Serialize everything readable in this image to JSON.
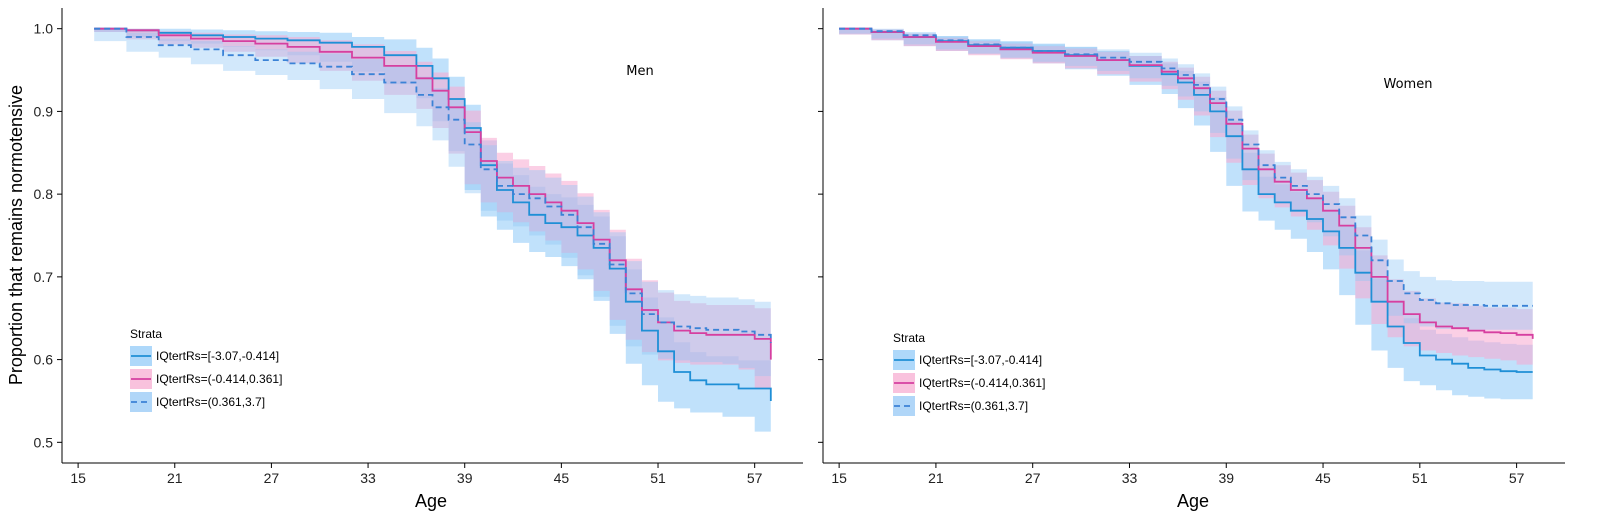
{
  "y_axis_label": "Proportion that remains normotensive",
  "legend": {
    "title": "Strata",
    "entries": [
      "IQtertRs=[-3.07,-0.414]",
      "IQtertRs=(-0.414,0.361]",
      "IQtertRs=(0.361,3.7]"
    ]
  },
  "colors": {
    "series_low": "#1f8fd6",
    "series_mid": "#d63fa0",
    "series_high": "#3b82d6",
    "band_low": "#8cc8f8",
    "band_mid": "#f7a8cf",
    "band_high": "#8fc5f5"
  },
  "chart_data": [
    {
      "type": "line",
      "panel_label": "Men",
      "xlabel": "Age",
      "ylabel": "Proportion that remains normotensive",
      "xlim": [
        14,
        60
      ],
      "ylim": [
        0.475,
        1.025
      ],
      "xticks": [
        15,
        21,
        27,
        33,
        39,
        45,
        51,
        57
      ],
      "yticks": [
        0.5,
        0.6,
        0.7,
        0.8,
        0.9,
        1.0
      ],
      "grid": false,
      "legend_position": "bottom-left",
      "series": [
        {
          "name": "IQtertRs=[-3.07,-0.414]",
          "style": "solid",
          "x": [
            16,
            18,
            20,
            22,
            24,
            26,
            28,
            30,
            32,
            34,
            36,
            37,
            38,
            39,
            40,
            41,
            42,
            43,
            44,
            45,
            46,
            47,
            48,
            49,
            50,
            51,
            52,
            53,
            54,
            55,
            56,
            57,
            58
          ],
          "y": [
            1.0,
            0.998,
            0.995,
            0.992,
            0.99,
            0.988,
            0.986,
            0.983,
            0.978,
            0.968,
            0.955,
            0.94,
            0.915,
            0.88,
            0.835,
            0.805,
            0.79,
            0.775,
            0.765,
            0.76,
            0.75,
            0.735,
            0.71,
            0.67,
            0.635,
            0.61,
            0.585,
            0.575,
            0.57,
            0.57,
            0.565,
            0.565,
            0.55
          ],
          "lower": [
            1.0,
            0.996,
            0.99,
            0.985,
            0.982,
            0.978,
            0.974,
            0.968,
            0.96,
            0.948,
            0.933,
            0.916,
            0.888,
            0.852,
            0.805,
            0.773,
            0.757,
            0.741,
            0.73,
            0.724,
            0.713,
            0.697,
            0.671,
            0.631,
            0.595,
            0.569,
            0.549,
            0.541,
            0.536,
            0.536,
            0.531,
            0.531,
            0.513
          ],
          "upper": [
            1.0,
            1.0,
            1.0,
            0.999,
            0.998,
            0.997,
            0.996,
            0.995,
            0.99,
            0.987,
            0.977,
            0.964,
            0.942,
            0.908,
            0.865,
            0.837,
            0.823,
            0.809,
            0.8,
            0.796,
            0.787,
            0.773,
            0.749,
            0.709,
            0.675,
            0.651,
            0.621,
            0.609,
            0.604,
            0.604,
            0.599,
            0.599,
            0.587
          ]
        },
        {
          "name": "IQtertRs=(-0.414,0.361]",
          "style": "solid",
          "x": [
            16,
            18,
            20,
            22,
            24,
            26,
            28,
            30,
            32,
            34,
            36,
            37,
            38,
            39,
            40,
            41,
            42,
            43,
            44,
            45,
            46,
            47,
            48,
            49,
            50,
            51,
            52,
            53,
            54,
            55,
            56,
            57,
            58
          ],
          "y": [
            1.0,
            0.998,
            0.992,
            0.988,
            0.985,
            0.982,
            0.978,
            0.972,
            0.965,
            0.955,
            0.94,
            0.925,
            0.905,
            0.875,
            0.84,
            0.82,
            0.81,
            0.8,
            0.79,
            0.78,
            0.765,
            0.745,
            0.72,
            0.685,
            0.66,
            0.645,
            0.635,
            0.632,
            0.63,
            0.63,
            0.63,
            0.625,
            0.6
          ],
          "lower": [
            1.0,
            0.996,
            0.987,
            0.981,
            0.977,
            0.972,
            0.966,
            0.958,
            0.949,
            0.937,
            0.92,
            0.903,
            0.88,
            0.849,
            0.812,
            0.79,
            0.778,
            0.766,
            0.755,
            0.744,
            0.729,
            0.709,
            0.683,
            0.648,
            0.624,
            0.609,
            0.599,
            0.596,
            0.594,
            0.594,
            0.594,
            0.588,
            0.565
          ],
          "upper": [
            1.0,
            1.0,
            0.997,
            0.995,
            0.993,
            0.992,
            0.99,
            0.986,
            0.981,
            0.973,
            0.96,
            0.947,
            0.93,
            0.901,
            0.868,
            0.85,
            0.842,
            0.834,
            0.825,
            0.816,
            0.801,
            0.781,
            0.757,
            0.722,
            0.696,
            0.681,
            0.671,
            0.668,
            0.666,
            0.666,
            0.666,
            0.662,
            0.635
          ]
        },
        {
          "name": "IQtertRs=(0.361,3.7]",
          "style": "dashed",
          "x": [
            16,
            18,
            20,
            22,
            24,
            26,
            28,
            30,
            32,
            34,
            36,
            37,
            38,
            39,
            40,
            41,
            42,
            43,
            44,
            45,
            46,
            47,
            48,
            49,
            50,
            51,
            52,
            53,
            54,
            55,
            56,
            57,
            58
          ],
          "y": [
            1.0,
            0.99,
            0.98,
            0.975,
            0.968,
            0.962,
            0.958,
            0.954,
            0.945,
            0.935,
            0.92,
            0.905,
            0.89,
            0.86,
            0.83,
            0.81,
            0.8,
            0.795,
            0.785,
            0.775,
            0.76,
            0.74,
            0.715,
            0.68,
            0.655,
            0.645,
            0.64,
            0.638,
            0.636,
            0.636,
            0.634,
            0.63,
            0.62
          ],
          "lower": [
            1.0,
            0.985,
            0.972,
            0.965,
            0.957,
            0.949,
            0.944,
            0.938,
            0.927,
            0.915,
            0.898,
            0.882,
            0.865,
            0.833,
            0.801,
            0.78,
            0.768,
            0.761,
            0.75,
            0.739,
            0.723,
            0.702,
            0.676,
            0.641,
            0.616,
            0.606,
            0.601,
            0.599,
            0.597,
            0.597,
            0.595,
            0.59,
            0.58
          ],
          "upper": [
            1.0,
            0.995,
            0.988,
            0.985,
            0.979,
            0.975,
            0.972,
            0.97,
            0.963,
            0.955,
            0.942,
            0.928,
            0.915,
            0.887,
            0.859,
            0.84,
            0.832,
            0.829,
            0.82,
            0.811,
            0.797,
            0.778,
            0.754,
            0.719,
            0.694,
            0.684,
            0.679,
            0.677,
            0.675,
            0.675,
            0.673,
            0.67,
            0.66
          ]
        }
      ]
    },
    {
      "type": "line",
      "panel_label": "Women",
      "xlabel": "Age",
      "ylabel": "",
      "xlim": [
        14,
        60
      ],
      "ylim": [
        0.475,
        1.025
      ],
      "xticks": [
        15,
        21,
        27,
        33,
        39,
        45,
        51,
        57
      ],
      "yticks": [
        0.5,
        0.6,
        0.7,
        0.8,
        0.9,
        1.0
      ],
      "grid": false,
      "legend_position": "bottom-left",
      "series": [
        {
          "name": "IQtertRs=[-3.07,-0.414]",
          "style": "solid",
          "x": [
            15,
            17,
            19,
            21,
            23,
            25,
            27,
            29,
            31,
            33,
            35,
            36,
            37,
            38,
            39,
            40,
            41,
            42,
            43,
            44,
            45,
            46,
            47,
            48,
            49,
            50,
            51,
            52,
            53,
            54,
            55,
            56,
            57,
            58
          ],
          "y": [
            1.0,
            0.996,
            0.99,
            0.985,
            0.98,
            0.977,
            0.973,
            0.968,
            0.962,
            0.955,
            0.945,
            0.935,
            0.92,
            0.9,
            0.87,
            0.83,
            0.8,
            0.79,
            0.78,
            0.77,
            0.755,
            0.735,
            0.705,
            0.67,
            0.64,
            0.62,
            0.605,
            0.6,
            0.595,
            0.59,
            0.588,
            0.586,
            0.585,
            0.585
          ],
          "lower": [
            1.0,
            0.993,
            0.986,
            0.979,
            0.973,
            0.969,
            0.964,
            0.958,
            0.951,
            0.943,
            0.932,
            0.921,
            0.904,
            0.883,
            0.851,
            0.81,
            0.779,
            0.768,
            0.757,
            0.746,
            0.73,
            0.709,
            0.678,
            0.642,
            0.611,
            0.59,
            0.574,
            0.569,
            0.563,
            0.557,
            0.555,
            0.553,
            0.552,
            0.552
          ],
          "upper": [
            1.0,
            0.999,
            0.994,
            0.991,
            0.987,
            0.985,
            0.982,
            0.978,
            0.973,
            0.967,
            0.958,
            0.949,
            0.936,
            0.917,
            0.889,
            0.85,
            0.821,
            0.812,
            0.803,
            0.794,
            0.78,
            0.761,
            0.732,
            0.698,
            0.669,
            0.65,
            0.636,
            0.631,
            0.627,
            0.623,
            0.621,
            0.619,
            0.618,
            0.618
          ]
        },
        {
          "name": "IQtertRs=(-0.414,0.361]",
          "style": "solid",
          "x": [
            15,
            17,
            19,
            21,
            23,
            25,
            27,
            29,
            31,
            33,
            35,
            36,
            37,
            38,
            39,
            40,
            41,
            42,
            43,
            44,
            45,
            46,
            47,
            48,
            49,
            50,
            51,
            52,
            53,
            54,
            55,
            56,
            57,
            58
          ],
          "y": [
            1.0,
            0.996,
            0.99,
            0.984,
            0.979,
            0.975,
            0.971,
            0.967,
            0.962,
            0.956,
            0.948,
            0.94,
            0.928,
            0.91,
            0.885,
            0.855,
            0.83,
            0.815,
            0.805,
            0.795,
            0.78,
            0.762,
            0.735,
            0.7,
            0.67,
            0.655,
            0.645,
            0.64,
            0.638,
            0.635,
            0.633,
            0.632,
            0.63,
            0.625
          ],
          "lower": [
            1.0,
            0.993,
            0.986,
            0.979,
            0.973,
            0.968,
            0.963,
            0.958,
            0.952,
            0.945,
            0.936,
            0.927,
            0.914,
            0.895,
            0.869,
            0.838,
            0.811,
            0.795,
            0.784,
            0.773,
            0.757,
            0.738,
            0.71,
            0.674,
            0.643,
            0.627,
            0.616,
            0.611,
            0.608,
            0.605,
            0.603,
            0.601,
            0.599,
            0.594
          ],
          "upper": [
            1.0,
            0.999,
            0.994,
            0.989,
            0.985,
            0.982,
            0.979,
            0.976,
            0.972,
            0.967,
            0.96,
            0.953,
            0.942,
            0.925,
            0.901,
            0.872,
            0.849,
            0.835,
            0.826,
            0.817,
            0.803,
            0.786,
            0.76,
            0.726,
            0.697,
            0.683,
            0.674,
            0.669,
            0.668,
            0.665,
            0.663,
            0.663,
            0.661,
            0.656
          ]
        },
        {
          "name": "IQtertRs=(0.361,3.7]",
          "style": "dashed",
          "x": [
            15,
            17,
            19,
            21,
            23,
            25,
            27,
            29,
            31,
            33,
            35,
            36,
            37,
            38,
            39,
            40,
            41,
            42,
            43,
            44,
            45,
            46,
            47,
            48,
            49,
            50,
            51,
            52,
            53,
            54,
            55,
            56,
            57,
            58
          ],
          "y": [
            1.0,
            0.997,
            0.992,
            0.986,
            0.981,
            0.977,
            0.973,
            0.969,
            0.965,
            0.96,
            0.952,
            0.944,
            0.932,
            0.915,
            0.89,
            0.86,
            0.835,
            0.82,
            0.81,
            0.8,
            0.788,
            0.772,
            0.75,
            0.72,
            0.695,
            0.68,
            0.672,
            0.668,
            0.666,
            0.666,
            0.665,
            0.665,
            0.665,
            0.665
          ],
          "lower": [
            1.0,
            0.994,
            0.988,
            0.981,
            0.975,
            0.97,
            0.965,
            0.96,
            0.955,
            0.949,
            0.94,
            0.931,
            0.918,
            0.9,
            0.874,
            0.843,
            0.817,
            0.801,
            0.79,
            0.779,
            0.766,
            0.749,
            0.726,
            0.695,
            0.669,
            0.653,
            0.644,
            0.64,
            0.637,
            0.637,
            0.636,
            0.636,
            0.636,
            0.636
          ],
          "upper": [
            1.0,
            1.0,
            0.996,
            0.991,
            0.987,
            0.984,
            0.981,
            0.978,
            0.975,
            0.971,
            0.964,
            0.957,
            0.946,
            0.93,
            0.906,
            0.877,
            0.853,
            0.839,
            0.83,
            0.821,
            0.81,
            0.795,
            0.774,
            0.745,
            0.721,
            0.707,
            0.7,
            0.696,
            0.695,
            0.695,
            0.694,
            0.694,
            0.694,
            0.694
          ]
        }
      ]
    }
  ]
}
